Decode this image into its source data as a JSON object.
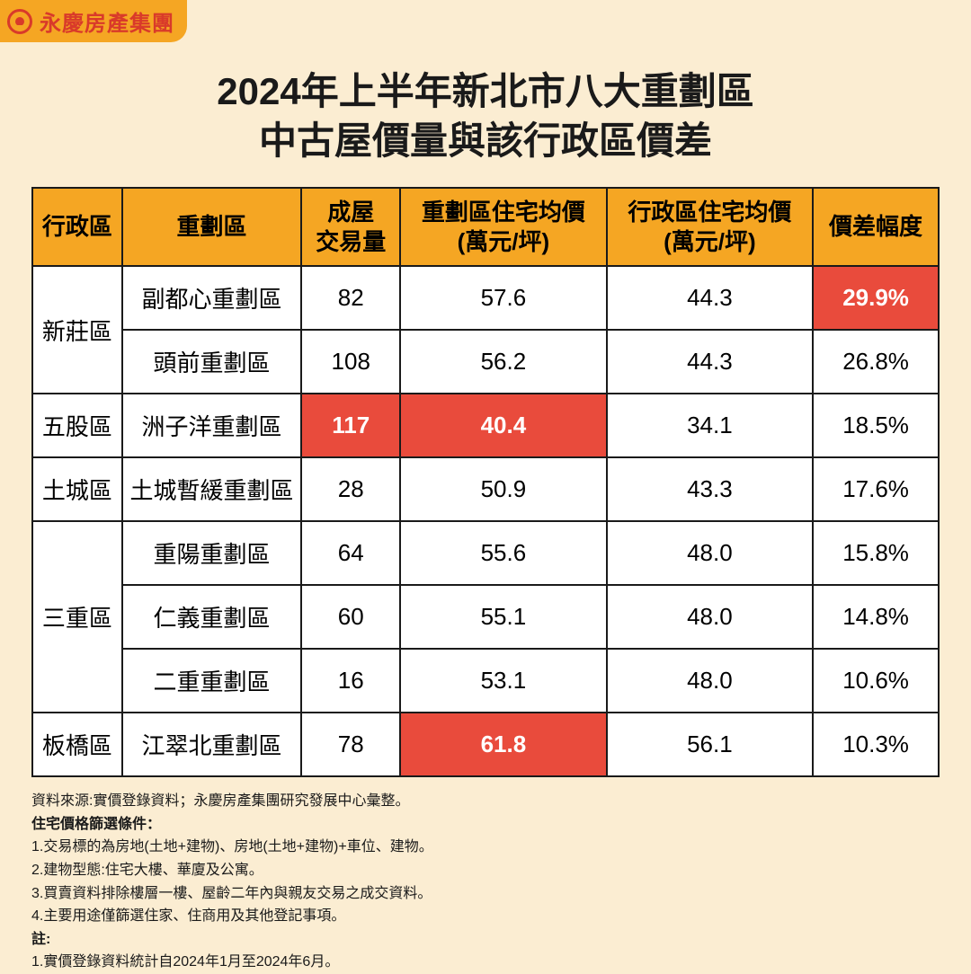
{
  "logo": {
    "text": "永慶房產集團"
  },
  "title_line1": "2024年上半年新北市八大重劃區",
  "title_line2": "中古屋價量與該行政區價差",
  "headers": {
    "c0": "行政區",
    "c1": "重劃區",
    "c2_l1": "成屋",
    "c2_l2": "交易量",
    "c3_l1": "重劃區住宅均價",
    "c3_l2": "(萬元/坪)",
    "c4_l1": "行政區住宅均價",
    "c4_l2": "(萬元/坪)",
    "c5": "價差幅度"
  },
  "rows": [
    {
      "district": "新莊區",
      "zone": "副都心重劃區",
      "vol": "82",
      "p1": "57.6",
      "p2": "44.3",
      "diff": "29.9%",
      "hl_vol": false,
      "hl_p1": false,
      "hl_diff": true,
      "rowspan": 2
    },
    {
      "district": "",
      "zone": "頭前重劃區",
      "vol": "108",
      "p1": "56.2",
      "p2": "44.3",
      "diff": "26.8%",
      "hl_vol": false,
      "hl_p1": false,
      "hl_diff": false,
      "rowspan": 0
    },
    {
      "district": "五股區",
      "zone": "洲子洋重劃區",
      "vol": "117",
      "p1": "40.4",
      "p2": "34.1",
      "diff": "18.5%",
      "hl_vol": true,
      "hl_p1": true,
      "hl_diff": false,
      "rowspan": 1
    },
    {
      "district": "土城區",
      "zone": "土城暫緩重劃區",
      "vol": "28",
      "p1": "50.9",
      "p2": "43.3",
      "diff": "17.6%",
      "hl_vol": false,
      "hl_p1": false,
      "hl_diff": false,
      "rowspan": 1
    },
    {
      "district": "三重區",
      "zone": "重陽重劃區",
      "vol": "64",
      "p1": "55.6",
      "p2": "48.0",
      "diff": "15.8%",
      "hl_vol": false,
      "hl_p1": false,
      "hl_diff": false,
      "rowspan": 3
    },
    {
      "district": "",
      "zone": "仁義重劃區",
      "vol": "60",
      "p1": "55.1",
      "p2": "48.0",
      "diff": "14.8%",
      "hl_vol": false,
      "hl_p1": false,
      "hl_diff": false,
      "rowspan": 0
    },
    {
      "district": "",
      "zone": "二重重劃區",
      "vol": "16",
      "p1": "53.1",
      "p2": "48.0",
      "diff": "10.6%",
      "hl_vol": false,
      "hl_p1": false,
      "hl_diff": false,
      "rowspan": 0
    },
    {
      "district": "板橋區",
      "zone": "江翠北重劃區",
      "vol": "78",
      "p1": "61.8",
      "p2": "56.1",
      "diff": "10.3%",
      "hl_vol": false,
      "hl_p1": true,
      "hl_diff": false,
      "rowspan": 1
    }
  ],
  "footer": {
    "source": "資料來源:實價登錄資料；永慶房產集團研究發展中心彙整。",
    "cond_title": "住宅價格篩選條件：",
    "cond1": "1.交易標的為房地(土地+建物)、房地(土地+建物)+車位、建物。",
    "cond2": "2.建物型態:住宅大樓、華廈及公寓。",
    "cond3": "3.買賣資料排除樓層一樓、屋齡二年內與親友交易之成交資料。",
    "cond4": "4.主要用途僅篩選住家、住商用及其他登記事項。",
    "note_title": "註:",
    "note1": "1.實價登錄資料統計自2024年1月至2024年6月。"
  },
  "colors": {
    "bg": "#fbedd2",
    "header_bg": "#f5a623",
    "highlight_bg": "#e94b3c",
    "border": "#1a1a1a",
    "logo_red": "#d93a2a"
  }
}
